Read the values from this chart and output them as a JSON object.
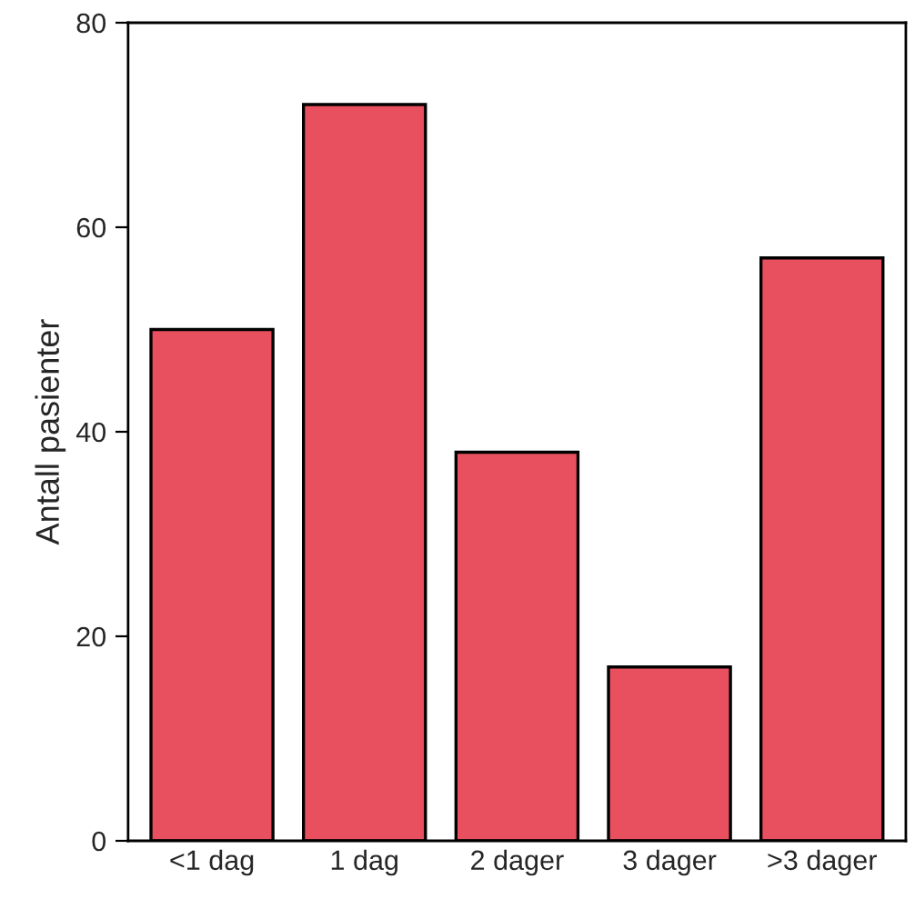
{
  "chart_data": {
    "type": "bar",
    "ylabel": "Antall pasienter",
    "categories": [
      "<1 dag",
      "1 dag",
      "2 dager",
      "3 dager",
      ">3 dager"
    ],
    "values": [
      50,
      72,
      38,
      17,
      57
    ],
    "color": "#e8505f",
    "ylim": [
      0,
      80
    ],
    "yticks": [
      0,
      20,
      40,
      60,
      80
    ],
    "grid": false
  }
}
